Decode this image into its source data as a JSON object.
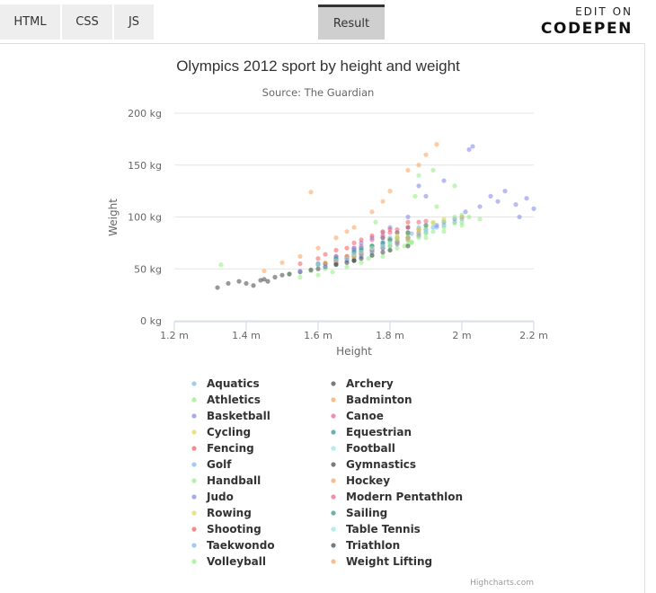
{
  "toolbar": {
    "tabs": [
      {
        "label": "HTML"
      },
      {
        "label": "CSS"
      },
      {
        "label": "JS"
      },
      {
        "label": "Result"
      }
    ],
    "edit_on": "EDIT ON",
    "codepen": "CODEPEN"
  },
  "chart_data": {
    "type": "scatter",
    "title": "Olympics 2012 sport by height and weight",
    "subtitle": "Source: The Guardian",
    "xlabel": "Height",
    "ylabel": "Weight",
    "xlim": [
      1.2,
      2.2
    ],
    "ylim": [
      0,
      200
    ],
    "x_ticks": [
      "1.2 m",
      "1.4 m",
      "1.6 m",
      "1.8 m",
      "2 m",
      "2.2 m"
    ],
    "y_ticks": [
      "0 kg",
      "50 kg",
      "100 kg",
      "150 kg",
      "200 kg"
    ],
    "grid": "horizontal",
    "legend_placement": "bottom",
    "credits": "Highcharts.com",
    "series": [
      {
        "name": "Aquatics",
        "color": "#7cb5ec",
        "points": [
          [
            1.9,
            85
          ],
          [
            1.85,
            80
          ],
          [
            1.95,
            92
          ],
          [
            1.78,
            70
          ],
          [
            1.72,
            62
          ],
          [
            1.88,
            88
          ],
          [
            2.0,
            98
          ],
          [
            1.82,
            76
          ],
          [
            1.75,
            66
          ],
          [
            1.68,
            58
          ],
          [
            1.93,
            90
          ],
          [
            1.98,
            95
          ],
          [
            1.8,
            78
          ],
          [
            1.86,
            84
          ],
          [
            1.7,
            60
          ]
        ]
      },
      {
        "name": "Archery",
        "color": "#434348",
        "points": [
          [
            1.75,
            72
          ],
          [
            1.68,
            62
          ],
          [
            1.82,
            85
          ],
          [
            1.65,
            58
          ],
          [
            1.72,
            70
          ],
          [
            1.78,
            80
          ],
          [
            1.7,
            68
          ],
          [
            1.85,
            90
          ],
          [
            1.62,
            55
          ],
          [
            1.8,
            78
          ]
        ]
      },
      {
        "name": "Athletics",
        "color": "#90ed7d",
        "points": [
          [
            1.33,
            54
          ],
          [
            1.52,
            45
          ],
          [
            1.58,
            48
          ],
          [
            1.62,
            50
          ],
          [
            1.65,
            54
          ],
          [
            1.7,
            58
          ],
          [
            1.75,
            63
          ],
          [
            1.8,
            68
          ],
          [
            1.85,
            74
          ],
          [
            1.9,
            80
          ],
          [
            1.95,
            86
          ],
          [
            1.88,
            140
          ],
          [
            1.92,
            145
          ],
          [
            1.98,
            130
          ],
          [
            1.55,
            42
          ],
          [
            1.6,
            44
          ],
          [
            1.72,
            56
          ],
          [
            1.78,
            62
          ],
          [
            1.82,
            70
          ],
          [
            1.86,
            75
          ],
          [
            1.68,
            52
          ],
          [
            1.93,
            110
          ],
          [
            1.87,
            120
          ],
          [
            1.76,
            95
          ],
          [
            2.0,
            92
          ],
          [
            1.64,
            47
          ],
          [
            1.74,
            60
          ],
          [
            1.84,
            72
          ]
        ]
      },
      {
        "name": "Badminton",
        "color": "#f7a35c",
        "points": [
          [
            1.65,
            58
          ],
          [
            1.72,
            65
          ],
          [
            1.78,
            72
          ],
          [
            1.82,
            76
          ],
          [
            1.68,
            62
          ],
          [
            1.75,
            68
          ],
          [
            1.85,
            80
          ],
          [
            1.6,
            55
          ],
          [
            1.7,
            64
          ],
          [
            1.88,
            82
          ]
        ]
      },
      {
        "name": "Basketball",
        "color": "#8085e9",
        "points": [
          [
            1.8,
            72
          ],
          [
            1.85,
            80
          ],
          [
            1.9,
            88
          ],
          [
            1.95,
            95
          ],
          [
            2.0,
            100
          ],
          [
            2.05,
            110
          ],
          [
            2.1,
            115
          ],
          [
            2.15,
            112
          ],
          [
            2.18,
            118
          ],
          [
            2.2,
            108
          ],
          [
            2.03,
            168
          ],
          [
            2.02,
            165
          ],
          [
            1.88,
            85
          ],
          [
            1.93,
            92
          ],
          [
            1.98,
            98
          ],
          [
            2.08,
            120
          ],
          [
            2.12,
            125
          ],
          [
            2.16,
            100
          ],
          [
            1.75,
            68
          ],
          [
            2.01,
            105
          ]
        ]
      },
      {
        "name": "Canoe",
        "color": "#f15c80",
        "points": [
          [
            1.75,
            78
          ],
          [
            1.8,
            85
          ],
          [
            1.85,
            90
          ],
          [
            1.7,
            70
          ],
          [
            1.78,
            82
          ],
          [
            1.88,
            95
          ],
          [
            1.65,
            62
          ],
          [
            1.82,
            88
          ],
          [
            1.72,
            72
          ],
          [
            1.9,
            96
          ]
        ]
      },
      {
        "name": "Cycling",
        "color": "#e4d354",
        "points": [
          [
            1.65,
            58
          ],
          [
            1.7,
            64
          ],
          [
            1.75,
            70
          ],
          [
            1.8,
            75
          ],
          [
            1.85,
            80
          ],
          [
            1.68,
            60
          ],
          [
            1.72,
            66
          ],
          [
            1.78,
            72
          ],
          [
            1.6,
            54
          ],
          [
            1.82,
            78
          ]
        ]
      },
      {
        "name": "Equestrian",
        "color": "#2b908f",
        "points": [
          [
            1.65,
            58
          ],
          [
            1.72,
            65
          ],
          [
            1.78,
            72
          ],
          [
            1.7,
            62
          ],
          [
            1.82,
            76
          ],
          [
            1.6,
            54
          ],
          [
            1.75,
            68
          ],
          [
            1.85,
            80
          ]
        ]
      },
      {
        "name": "Fencing",
        "color": "#f45b5b",
        "points": [
          [
            1.68,
            60
          ],
          [
            1.72,
            66
          ],
          [
            1.78,
            74
          ],
          [
            1.82,
            80
          ],
          [
            1.85,
            84
          ],
          [
            1.75,
            70
          ],
          [
            1.65,
            58
          ],
          [
            1.88,
            88
          ],
          [
            1.8,
            78
          ],
          [
            1.7,
            64
          ]
        ]
      },
      {
        "name": "Football",
        "color": "#91e8e1",
        "points": [
          [
            1.7,
            66
          ],
          [
            1.75,
            70
          ],
          [
            1.8,
            75
          ],
          [
            1.85,
            80
          ],
          [
            1.9,
            86
          ],
          [
            1.72,
            68
          ],
          [
            1.78,
            73
          ],
          [
            1.82,
            78
          ],
          [
            1.65,
            60
          ],
          [
            1.88,
            84
          ]
        ]
      },
      {
        "name": "Golf",
        "color": "#7cb5ec",
        "points": [
          [
            1.65,
            60
          ],
          [
            1.7,
            68
          ],
          [
            1.75,
            72
          ],
          [
            1.8,
            80
          ],
          [
            1.85,
            85
          ],
          [
            1.78,
            76
          ],
          [
            1.72,
            70
          ],
          [
            1.88,
            90
          ]
        ]
      },
      {
        "name": "Gymnastics",
        "color": "#434348",
        "points": [
          [
            1.32,
            32
          ],
          [
            1.35,
            36
          ],
          [
            1.38,
            38
          ],
          [
            1.42,
            34
          ],
          [
            1.45,
            40
          ],
          [
            1.48,
            42
          ],
          [
            1.5,
            44
          ],
          [
            1.55,
            47
          ],
          [
            1.6,
            50
          ],
          [
            1.65,
            55
          ],
          [
            1.7,
            58
          ],
          [
            1.46,
            38
          ],
          [
            1.52,
            45
          ],
          [
            1.58,
            49
          ],
          [
            1.62,
            52
          ],
          [
            1.4,
            36
          ],
          [
            1.44,
            39
          ]
        ]
      },
      {
        "name": "Handball",
        "color": "#90ed7d",
        "points": [
          [
            1.75,
            72
          ],
          [
            1.8,
            78
          ],
          [
            1.85,
            84
          ],
          [
            1.9,
            90
          ],
          [
            1.95,
            96
          ],
          [
            2.0,
            102
          ],
          [
            1.88,
            88
          ],
          [
            1.92,
            94
          ],
          [
            1.82,
            80
          ],
          [
            1.98,
            100
          ]
        ]
      },
      {
        "name": "Hockey",
        "color": "#f7a35c",
        "points": [
          [
            1.62,
            56
          ],
          [
            1.68,
            62
          ],
          [
            1.72,
            66
          ],
          [
            1.78,
            72
          ],
          [
            1.82,
            76
          ],
          [
            1.7,
            64
          ],
          [
            1.75,
            68
          ],
          [
            1.85,
            80
          ],
          [
            1.65,
            59
          ],
          [
            1.88,
            84
          ]
        ]
      },
      {
        "name": "Judo",
        "color": "#8085e9",
        "points": [
          [
            1.55,
            48
          ],
          [
            1.6,
            55
          ],
          [
            1.65,
            62
          ],
          [
            1.7,
            70
          ],
          [
            1.75,
            80
          ],
          [
            1.8,
            90
          ],
          [
            1.85,
            100
          ],
          [
            1.9,
            120
          ],
          [
            1.95,
            135
          ],
          [
            1.88,
            130
          ],
          [
            1.78,
            85
          ],
          [
            1.72,
            75
          ]
        ]
      },
      {
        "name": "Modern Pentathlon",
        "color": "#f15c80",
        "points": [
          [
            1.68,
            60
          ],
          [
            1.72,
            64
          ],
          [
            1.78,
            70
          ],
          [
            1.82,
            74
          ],
          [
            1.75,
            68
          ],
          [
            1.85,
            78
          ],
          [
            1.7,
            62
          ],
          [
            1.65,
            57
          ]
        ]
      },
      {
        "name": "Rowing",
        "color": "#e4d354",
        "points": [
          [
            1.7,
            62
          ],
          [
            1.75,
            70
          ],
          [
            1.8,
            78
          ],
          [
            1.85,
            85
          ],
          [
            1.9,
            92
          ],
          [
            1.95,
            98
          ],
          [
            1.88,
            88
          ],
          [
            1.82,
            82
          ],
          [
            1.92,
            95
          ],
          [
            2.0,
            100
          ]
        ]
      },
      {
        "name": "Sailing",
        "color": "#2b908f",
        "points": [
          [
            1.65,
            60
          ],
          [
            1.7,
            66
          ],
          [
            1.75,
            72
          ],
          [
            1.8,
            78
          ],
          [
            1.85,
            85
          ],
          [
            1.9,
            92
          ],
          [
            1.78,
            75
          ],
          [
            1.72,
            68
          ]
        ]
      },
      {
        "name": "Shooting",
        "color": "#f45b5b",
        "points": [
          [
            1.55,
            55
          ],
          [
            1.6,
            60
          ],
          [
            1.65,
            68
          ],
          [
            1.7,
            75
          ],
          [
            1.75,
            82
          ],
          [
            1.8,
            88
          ],
          [
            1.85,
            95
          ],
          [
            1.62,
            64
          ],
          [
            1.72,
            78
          ],
          [
            1.78,
            86
          ],
          [
            1.68,
            70
          ]
        ]
      },
      {
        "name": "Table Tennis",
        "color": "#91e8e1",
        "points": [
          [
            1.6,
            54
          ],
          [
            1.65,
            58
          ],
          [
            1.7,
            64
          ],
          [
            1.75,
            70
          ],
          [
            1.8,
            75
          ],
          [
            1.68,
            60
          ],
          [
            1.72,
            66
          ],
          [
            1.78,
            72
          ]
        ]
      },
      {
        "name": "Taekwondo",
        "color": "#7cb5ec",
        "points": [
          [
            1.62,
            52
          ],
          [
            1.68,
            58
          ],
          [
            1.75,
            66
          ],
          [
            1.82,
            74
          ],
          [
            1.88,
            82
          ],
          [
            1.92,
            90
          ],
          [
            1.78,
            70
          ],
          [
            1.72,
            62
          ]
        ]
      },
      {
        "name": "Triathlon",
        "color": "#434348",
        "points": [
          [
            1.65,
            54
          ],
          [
            1.7,
            58
          ],
          [
            1.75,
            63
          ],
          [
            1.8,
            68
          ],
          [
            1.85,
            72
          ],
          [
            1.72,
            60
          ],
          [
            1.78,
            66
          ],
          [
            1.68,
            56
          ]
        ]
      },
      {
        "name": "Volleyball",
        "color": "#90ed7d",
        "points": [
          [
            1.8,
            72
          ],
          [
            1.85,
            78
          ],
          [
            1.9,
            84
          ],
          [
            1.95,
            90
          ],
          [
            2.0,
            95
          ],
          [
            2.05,
            98
          ],
          [
            1.88,
            80
          ],
          [
            1.98,
            94
          ],
          [
            1.92,
            86
          ],
          [
            2.02,
            100
          ],
          [
            1.86,
            76
          ]
        ]
      },
      {
        "name": "Weight Lifting",
        "color": "#f7a35c",
        "points": [
          [
            1.45,
            48
          ],
          [
            1.5,
            56
          ],
          [
            1.55,
            62
          ],
          [
            1.6,
            70
          ],
          [
            1.65,
            80
          ],
          [
            1.7,
            90
          ],
          [
            1.75,
            105
          ],
          [
            1.8,
            125
          ],
          [
            1.85,
            145
          ],
          [
            1.9,
            160
          ],
          [
            1.93,
            170
          ],
          [
            1.88,
            150
          ],
          [
            1.78,
            115
          ],
          [
            1.58,
            124
          ],
          [
            1.68,
            86
          ]
        ]
      }
    ]
  }
}
